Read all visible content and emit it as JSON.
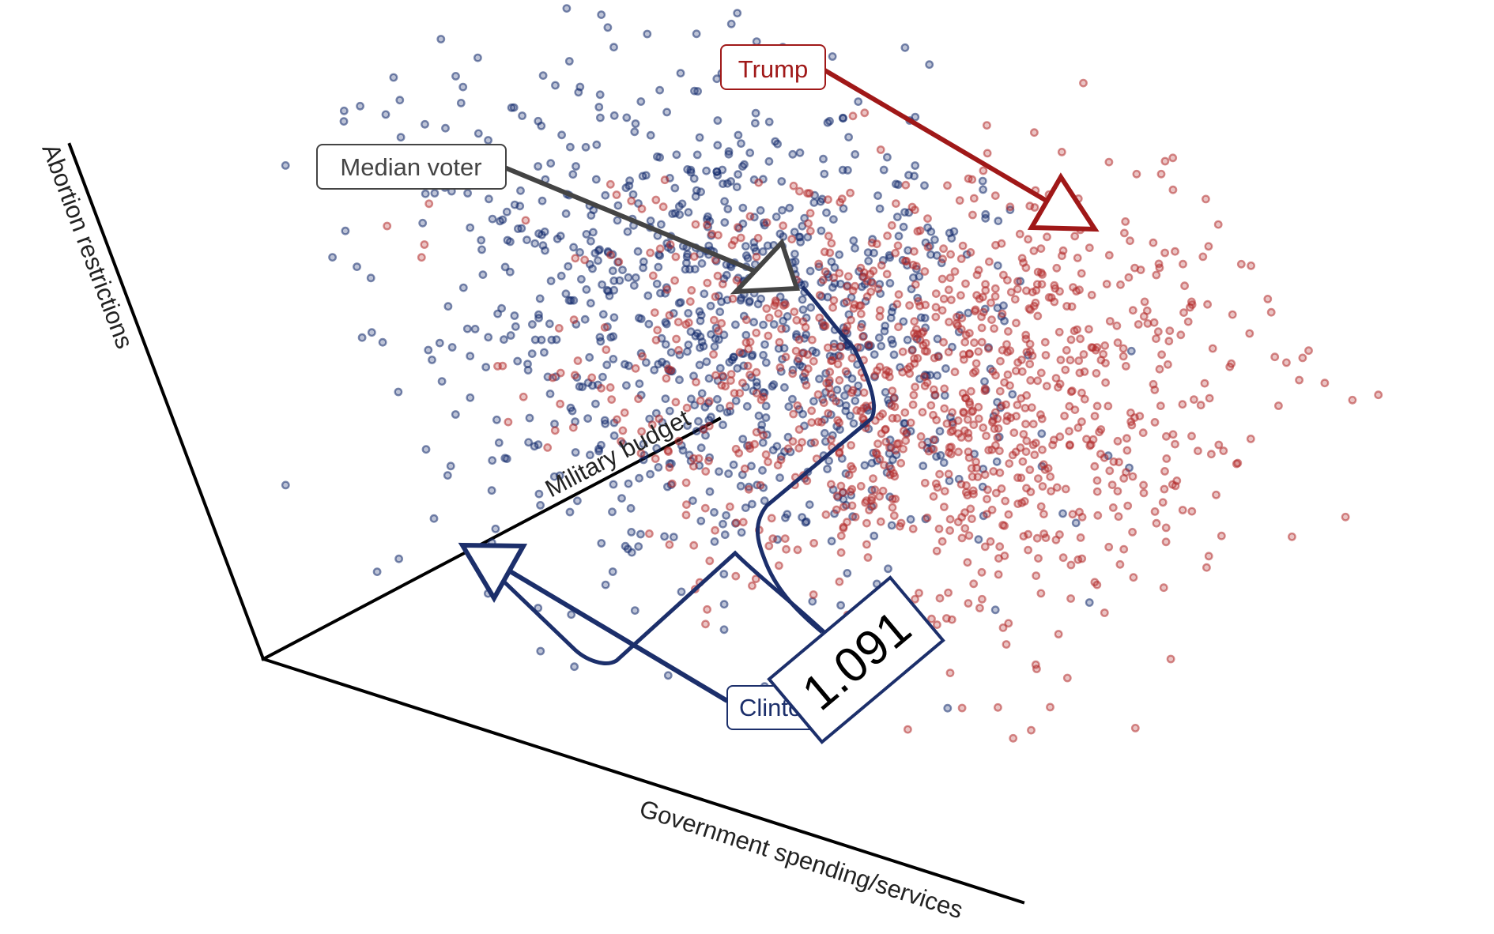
{
  "colors": {
    "democrat": "#13296b",
    "republican": "#b22b2b",
    "trump_arrow": "#a01818",
    "median_arrow": "#444444",
    "clinton_arrow": "#1c2f6b"
  },
  "chart_data": {
    "type": "scatter",
    "projection": "3d-oblique",
    "axes": {
      "x": {
        "label": "Government spending/services"
      },
      "y": {
        "label": "Military budget"
      },
      "z": {
        "label": "Abortion restrictions"
      }
    },
    "grid": false,
    "legend": "none",
    "series": [
      {
        "color": "#13296b",
        "count": 950,
        "center": [
          0.3,
          0.72,
          0.46
        ]
      },
      {
        "color": "#b22b2b",
        "count": 1050,
        "center": [
          0.82,
          0.42,
          0.7
        ]
      }
    ],
    "annotations": {
      "trump": {
        "label": "Trump"
      },
      "median": {
        "label": "Median voter"
      },
      "clinton": {
        "label": "Clinton",
        "value": "1.091"
      }
    }
  }
}
